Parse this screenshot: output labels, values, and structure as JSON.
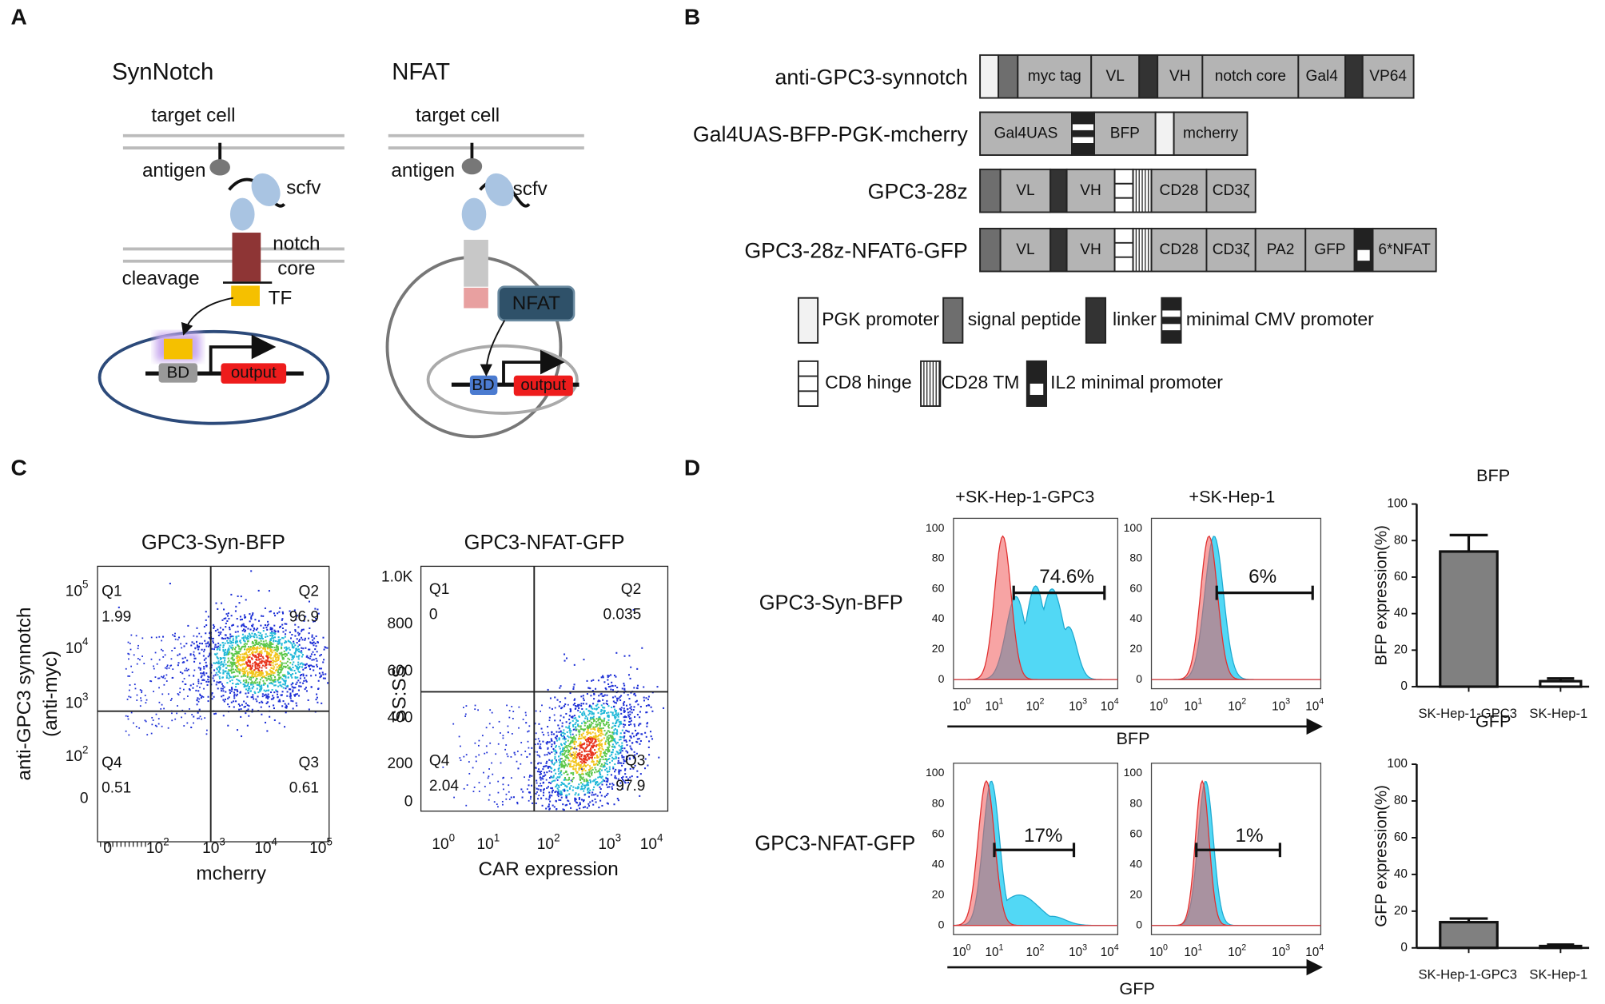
{
  "panel_labels": [
    "A",
    "B",
    "C",
    "D"
  ],
  "panel_a": {
    "synnotch": {
      "title": "SynNotch",
      "target": "target cell",
      "antigen": "antigen",
      "scfv": "scfv",
      "notch": "notch",
      "core": "core",
      "cleavage": "cleavage",
      "tf": "TF",
      "bd": "BD",
      "output": "output"
    },
    "nfat": {
      "title": "NFAT",
      "target": "target cell",
      "antigen": "antigen",
      "scfv": "scfv",
      "nfat": "NFAT",
      "bd": "BD",
      "output": "output"
    }
  },
  "panel_b": {
    "constructs": [
      {
        "name": "anti-GPC3-synnotch",
        "segments": [
          "myc tag",
          "VL",
          "VH",
          "notch core",
          "Gal4",
          "VP64"
        ]
      },
      {
        "name": "Gal4UAS-BFP-PGK-mcherry",
        "segments": [
          "Gal4UAS",
          "BFP",
          "mcherry"
        ]
      },
      {
        "name": "GPC3-28z",
        "segments": [
          "VL",
          "VH",
          "CD28",
          "CD3ζ"
        ]
      },
      {
        "name": "GPC3-28z-NFAT6-GFP",
        "segments": [
          "VL",
          "VH",
          "CD28",
          "CD3ζ",
          "PA2",
          "GFP",
          "6*NFAT"
        ]
      }
    ],
    "legend": [
      "PGK promoter",
      "signal peptide",
      "linker",
      "minimal CMV promoter",
      "CD8 hinge",
      "CD28 TM",
      "IL2 minimal promoter"
    ]
  },
  "panel_c": {
    "plots": [
      {
        "title": "GPC3-Syn-BFP",
        "xlabel": "mcherry",
        "ylabel": [
          "anti-GPC3 synnotch",
          "(anti-myc)"
        ],
        "yticks": [
          [
            "10",
            "5"
          ],
          [
            "10",
            "4"
          ],
          [
            "10",
            "3"
          ],
          [
            "10",
            "2"
          ],
          [
            "0"
          ]
        ],
        "xticks": [
          [
            "0"
          ],
          [
            "10",
            "2"
          ],
          [
            "10",
            "3"
          ],
          [
            "10",
            "4"
          ],
          [
            "10",
            "5"
          ]
        ],
        "quadrants": [
          {
            "name": "Q1",
            "value": "1.99"
          },
          {
            "name": "Q2",
            "value": "96.9"
          },
          {
            "name": "Q4",
            "value": "0.51"
          },
          {
            "name": "Q3",
            "value": "0.61"
          }
        ]
      },
      {
        "title": "GPC3-NFAT-GFP",
        "xlabel": "CAR expression",
        "ylabel": [
          "SS:SS"
        ],
        "yticks": [
          [
            "1.0K"
          ],
          [
            "800"
          ],
          [
            "600"
          ],
          [
            "400"
          ],
          [
            "200"
          ],
          [
            "0"
          ]
        ],
        "xticks": [
          [
            "10",
            "0"
          ],
          [
            "10",
            "1"
          ],
          [
            "10",
            "2"
          ],
          [
            "10",
            "3"
          ],
          [
            "10",
            "4"
          ]
        ],
        "quadrants": [
          {
            "name": "Q1",
            "value": "0"
          },
          {
            "name": "Q2",
            "value": "0.035"
          },
          {
            "name": "Q4",
            "value": "2.04"
          },
          {
            "name": "Q3",
            "value": "97.9"
          }
        ]
      }
    ]
  },
  "panel_d": {
    "columns": [
      "+SK-Hep-1-GPC3",
      "+SK-Hep-1"
    ],
    "rows": [
      {
        "name": "GPC3-Syn-BFP",
        "axis": "BFP",
        "gates": [
          "74.6%",
          "6%"
        ]
      },
      {
        "name": "GPC3-NFAT-GFP",
        "axis": "GFP",
        "gates": [
          "17%",
          "1%"
        ]
      }
    ],
    "yticks": [
      "100",
      "80",
      "60",
      "40",
      "20",
      "0"
    ],
    "xticks": [
      [
        "10",
        "0"
      ],
      [
        "10",
        "1"
      ],
      [
        "10",
        "2"
      ],
      [
        "10",
        "3"
      ],
      [
        "10",
        "4"
      ]
    ]
  },
  "chart_data": [
    {
      "type": "bar",
      "title": "BFP",
      "ylabel": "BFP expression(%)",
      "categories": [
        "SK-Hep-1-GPC3",
        "SK-Hep-1"
      ],
      "values": [
        74,
        3
      ],
      "errors": [
        9,
        1.5
      ],
      "colors": [
        "#808080",
        "#ffffff"
      ],
      "ylim": [
        0,
        100
      ],
      "yticks": [
        0,
        20,
        40,
        60,
        80,
        100
      ]
    },
    {
      "type": "bar",
      "title": "GFP",
      "ylabel": "GFP expression(%)",
      "categories": [
        "SK-Hep-1-GPC3",
        "SK-Hep-1"
      ],
      "values": [
        14,
        1
      ],
      "errors": [
        2,
        0.8
      ],
      "colors": [
        "#808080",
        "#ffffff"
      ],
      "ylim": [
        0,
        100
      ],
      "yticks": [
        0,
        20,
        40,
        60,
        80,
        100
      ]
    }
  ]
}
